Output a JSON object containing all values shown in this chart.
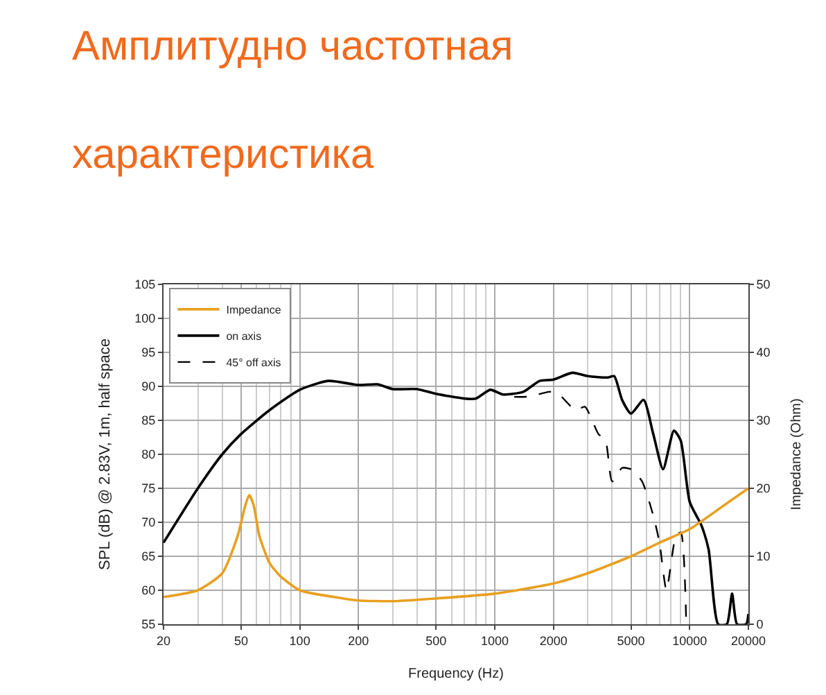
{
  "chart_data": {
    "type": "line",
    "title": "Амплитудно частотная характеристика",
    "xlabel": "Frequency (Hz)",
    "ylabel": "SPL (dB) @ 2.83V, 1m, half space",
    "y2label": "Impedance (Ohm)",
    "log": "x",
    "grid": true,
    "legend": "top left",
    "line_style": "solid",
    "marker": "none",
    "xlim": [
      20,
      20000
    ],
    "xticks": [
      20,
      50,
      100,
      200,
      500,
      1000,
      2000,
      5000,
      10000,
      20000
    ],
    "ylim": [
      55,
      105
    ],
    "yticks": [
      55,
      60,
      65,
      70,
      75,
      80,
      85,
      90,
      95,
      100,
      105
    ],
    "y2lim": [
      0,
      50
    ],
    "y2ticks": [
      0,
      10,
      20,
      30,
      40,
      50
    ],
    "series": [
      {
        "name": "Impedance",
        "color": "#e8a020",
        "axis": "y2",
        "x": [
          20,
          30,
          40,
          48,
          52,
          55,
          58,
          62,
          70,
          80,
          100,
          150,
          200,
          300,
          500,
          1000,
          2000,
          3000,
          5000,
          7000,
          10000,
          15000,
          20000
        ],
        "values": [
          4,
          5,
          7.5,
          13,
          17,
          19,
          17.5,
          13,
          9,
          7,
          5,
          4,
          3.5,
          3.4,
          3.8,
          4.5,
          6,
          7.5,
          10,
          12,
          14,
          17.5,
          20
        ]
      },
      {
        "name": "on axis",
        "color": "#000000",
        "x": [
          20,
          30,
          40,
          50,
          70,
          100,
          140,
          200,
          250,
          300,
          400,
          500,
          700,
          800,
          950,
          1100,
          1400,
          1700,
          2000,
          2500,
          3000,
          3800,
          4100,
          4500,
          5000,
          5800,
          6500,
          7300,
          8300,
          9000,
          10000,
          11500,
          12500,
          14000,
          15500,
          16500,
          17500,
          19500,
          20000
        ],
        "values": [
          67,
          75,
          80,
          83,
          86.5,
          89.5,
          90.8,
          90.2,
          90.3,
          89.6,
          89.6,
          88.9,
          88.2,
          88.2,
          89.5,
          88.8,
          89.2,
          90.8,
          91,
          92,
          91.5,
          91.3,
          91.5,
          88,
          86,
          88,
          83,
          77.8,
          83.5,
          82,
          73,
          69.5,
          66,
          55,
          55,
          59.5,
          55,
          55,
          56.5
        ]
      },
      {
        "name": "45° off axis",
        "color": "#000000",
        "line_style": "dashed",
        "x": [
          950,
          1200,
          1500,
          1900,
          2100,
          2600,
          2900,
          3400,
          3700,
          4000,
          4500,
          5000,
          5700,
          6500,
          7000,
          7600,
          8500,
          9000,
          9600
        ],
        "values": [
          89.5,
          88.5,
          88.5,
          89.2,
          89,
          86.5,
          87,
          83,
          82,
          76,
          78,
          77.8,
          76,
          71,
          67,
          60,
          68,
          68.5,
          55
        ]
      }
    ]
  }
}
